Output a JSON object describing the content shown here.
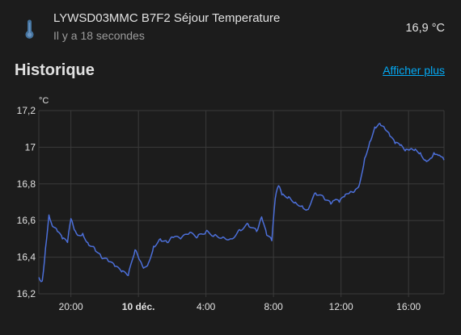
{
  "entity": {
    "name": "LYWSD03MMC B7F2 Séjour Temperature",
    "last_changed": "Il y a 18 secondes",
    "state": "16,9 °C",
    "icon": "thermometer-icon",
    "icon_color": "#44739e"
  },
  "history": {
    "title": "Historique",
    "more_label": "Afficher plus",
    "link_color": "#03a9f4"
  },
  "chart_data": {
    "type": "line",
    "ylabel": "°C",
    "ylim": [
      16.2,
      17.2
    ],
    "y_ticks": [
      "16,2",
      "16,4",
      "16,6",
      "16,8",
      "17",
      "17,2"
    ],
    "x_ticks": [
      "20:00",
      "10 déc.",
      "4:00",
      "8:00",
      "12:00",
      "16:00"
    ],
    "x_tick_hours": [
      20,
      24,
      28,
      32,
      36,
      40
    ],
    "x_tick_bold": [
      false,
      true,
      false,
      false,
      false,
      false
    ],
    "xlim_hours": [
      18.1,
      42.1
    ],
    "line_color": "#4c6fd9",
    "grid": true,
    "series": [
      {
        "x_hours": [
          18.1,
          18.3,
          18.5,
          18.7,
          18.9,
          19.2,
          19.5,
          19.8,
          20.0,
          20.2,
          20.4,
          20.7,
          21.0,
          21.4,
          21.8,
          22.2,
          22.6,
          23.0,
          23.4,
          23.8,
          24.1,
          24.3,
          24.6,
          24.9,
          25.3,
          25.7,
          26.0,
          26.5,
          27.0,
          27.5,
          28.0,
          28.5,
          29.0,
          29.5,
          30.0,
          30.5,
          31.0,
          31.3,
          31.6,
          31.9,
          32.1,
          32.3,
          32.5,
          32.9,
          33.3,
          33.7,
          34.0,
          34.5,
          35.0,
          35.4,
          35.6,
          35.9,
          36.2,
          36.5,
          36.8,
          37.1,
          37.4,
          37.7,
          38.0,
          38.3,
          38.6,
          38.9,
          39.2,
          39.5,
          39.8,
          40.1,
          40.4,
          40.7,
          41.0,
          41.3,
          41.5,
          41.7,
          41.9,
          42.1
        ],
        "values": [
          16.29,
          16.27,
          16.45,
          16.63,
          16.57,
          16.54,
          16.5,
          16.48,
          16.61,
          16.55,
          16.52,
          16.53,
          16.48,
          16.45,
          16.4,
          16.38,
          16.35,
          16.32,
          16.3,
          16.44,
          16.38,
          16.34,
          16.37,
          16.46,
          16.5,
          16.48,
          16.51,
          16.5,
          16.53,
          16.51,
          16.54,
          16.52,
          16.51,
          16.5,
          16.55,
          16.58,
          16.54,
          16.62,
          16.52,
          16.49,
          16.72,
          16.79,
          16.74,
          16.73,
          16.7,
          16.68,
          16.66,
          16.75,
          16.72,
          16.69,
          16.71,
          16.7,
          16.73,
          16.75,
          16.76,
          16.8,
          16.94,
          17.03,
          17.11,
          17.13,
          17.1,
          17.06,
          17.02,
          17.01,
          16.98,
          16.99,
          16.99,
          16.97,
          16.93,
          16.94,
          16.97,
          16.96,
          16.95,
          16.93
        ]
      }
    ]
  }
}
